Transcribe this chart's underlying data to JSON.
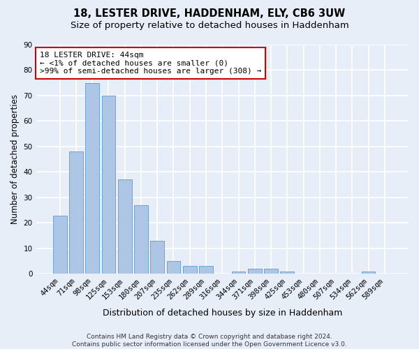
{
  "title1": "18, LESTER DRIVE, HADDENHAM, ELY, CB6 3UW",
  "title2": "Size of property relative to detached houses in Haddenham",
  "xlabel": "Distribution of detached houses by size in Haddenham",
  "ylabel": "Number of detached properties",
  "categories": [
    "44sqm",
    "71sqm",
    "98sqm",
    "125sqm",
    "153sqm",
    "180sqm",
    "207sqm",
    "235sqm",
    "262sqm",
    "289sqm",
    "316sqm",
    "344sqm",
    "371sqm",
    "398sqm",
    "425sqm",
    "453sqm",
    "480sqm",
    "507sqm",
    "534sqm",
    "562sqm",
    "589sqm"
  ],
  "values": [
    23,
    48,
    75,
    70,
    37,
    27,
    13,
    5,
    3,
    3,
    0,
    1,
    2,
    2,
    1,
    0,
    0,
    0,
    0,
    1,
    0
  ],
  "bar_color": "#adc6e5",
  "bar_edge_color": "#5b9bd5",
  "ylim": [
    0,
    90
  ],
  "yticks": [
    0,
    10,
    20,
    30,
    40,
    50,
    60,
    70,
    80,
    90
  ],
  "annotation_line1": "18 LESTER DRIVE: 44sqm",
  "annotation_line2": "← <1% of detached houses are smaller (0)",
  "annotation_line3": ">99% of semi-detached houses are larger (308) →",
  "annotation_box_color": "#ffffff",
  "annotation_box_edge_color": "#cc0000",
  "footnote": "Contains HM Land Registry data © Crown copyright and database right 2024.\nContains public sector information licensed under the Open Government Licence v3.0.",
  "bg_color": "#e8eef8",
  "grid_color": "#ffffff",
  "title1_fontsize": 10.5,
  "title2_fontsize": 9.5,
  "xlabel_fontsize": 9,
  "ylabel_fontsize": 8.5,
  "tick_fontsize": 7.5,
  "annotation_fontsize": 8,
  "footnote_fontsize": 6.5
}
